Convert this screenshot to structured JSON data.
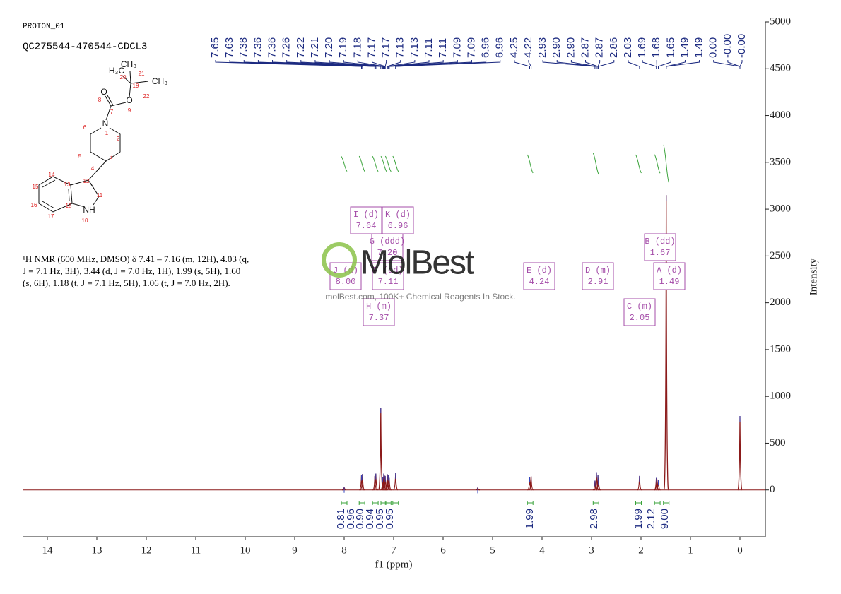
{
  "header": {
    "sample": "PROTON_01",
    "title": "QC275544-470544-CDCL3"
  },
  "structure": {
    "atoms": [
      "H₃C",
      "CH₃",
      "CH₃",
      "O",
      "O",
      "N",
      "NH",
      "20",
      "21",
      "19",
      "22",
      "8",
      "7",
      "9",
      "1",
      "6",
      "2",
      "5",
      "3",
      "4",
      "12",
      "13",
      "14",
      "11",
      "15",
      "16",
      "18",
      "17",
      "10"
    ]
  },
  "nmr_text": [
    "¹H NMR (600 MHz, DMSO) δ 7.41 – 7.16 (m, 12H), 4.03 (q,",
    "J = 7.1 Hz, 3H), 3.44 (d, J = 7.0 Hz, 1H), 1.99 (s, 5H), 1.60",
    "(s, 6H), 1.18 (t, J = 7.1 Hz, 5H), 1.06 (t, J = 7.0 Hz, 2H)."
  ],
  "watermark": {
    "logo": "MolBest",
    "text": "molBest.com, 100K+ Chemical Reagents In Stock."
  },
  "chart_data": {
    "type": "spectrum",
    "x_label": "f1 (ppm)",
    "y_label": "Intensity",
    "xlim": [
      14.5,
      -0.5
    ],
    "xticks": [
      14,
      13,
      12,
      11,
      10,
      9,
      8,
      7,
      6,
      5,
      4,
      3,
      2,
      1,
      0
    ],
    "ylim": [
      -500,
      5000
    ],
    "yticks": [
      0,
      500,
      1000,
      1500,
      2000,
      2500,
      3000,
      3500,
      4000,
      4500,
      5000
    ],
    "color": "#8b1a1a",
    "x": [
      8.0,
      7.65,
      7.63,
      7.38,
      7.36,
      7.26,
      7.22,
      7.2,
      7.19,
      7.17,
      7.13,
      7.11,
      7.09,
      6.96,
      5.3,
      4.25,
      4.22,
      2.93,
      2.9,
      2.87,
      2.86,
      2.03,
      1.69,
      1.68,
      1.65,
      1.49,
      0.0
    ],
    "values": [
      30,
      160,
      170,
      150,
      175,
      880,
      140,
      175,
      160,
      150,
      170,
      160,
      130,
      180,
      25,
      140,
      145,
      100,
      190,
      160,
      120,
      150,
      130,
      120,
      110,
      3150,
      790
    ],
    "peak_labels": [
      "7.65",
      "7.63",
      "7.38",
      "7.36",
      "7.36",
      "7.26",
      "7.22",
      "7.21",
      "7.20",
      "7.19",
      "7.18",
      "7.17",
      "7.17",
      "7.13",
      "7.13",
      "7.11",
      "7.11",
      "7.09",
      "7.09",
      "6.96",
      "6.96",
      "4.25",
      "4.22",
      "2.93",
      "2.90",
      "2.90",
      "2.87",
      "2.87",
      "2.86",
      "2.03",
      "1.69",
      "1.68",
      "1.65",
      "1.49",
      "1.49",
      "0.00",
      "-0.00",
      "-0.00"
    ],
    "integrals": {
      "x": [
        8.0,
        7.64,
        7.37,
        7.2,
        7.11,
        6.96,
        4.24,
        2.91,
        2.05,
        1.67,
        1.49
      ],
      "values": [
        0.81,
        0.96,
        0.9,
        0.94,
        0.95,
        0.95,
        1.99,
        2.98,
        1.99,
        2.12,
        9.0
      ],
      "value_labels": [
        "0.81",
        "0.96",
        "0.90",
        "0.94",
        "0.95",
        "0.95",
        "1.99",
        "2.98",
        "1.99",
        "2.12",
        "9.00"
      ]
    },
    "multiplets": [
      {
        "label": "I (d)",
        "shift": "7.64"
      },
      {
        "label": "K (d)",
        "shift": "6.96"
      },
      {
        "label": "G (ddd)",
        "shift": "7.20"
      },
      {
        "label": "J (d)",
        "shift": "8.00"
      },
      {
        "label": "F (dd)",
        "shift": "7.11"
      },
      {
        "label": "H (m)",
        "shift": "7.37"
      },
      {
        "label": "E (d)",
        "shift": "4.24"
      },
      {
        "label": "D (m)",
        "shift": "2.91"
      },
      {
        "label": "C (m)",
        "shift": "2.05"
      },
      {
        "label": "B (dd)",
        "shift": "1.67"
      },
      {
        "label": "A (d)",
        "shift": "1.49"
      }
    ]
  }
}
